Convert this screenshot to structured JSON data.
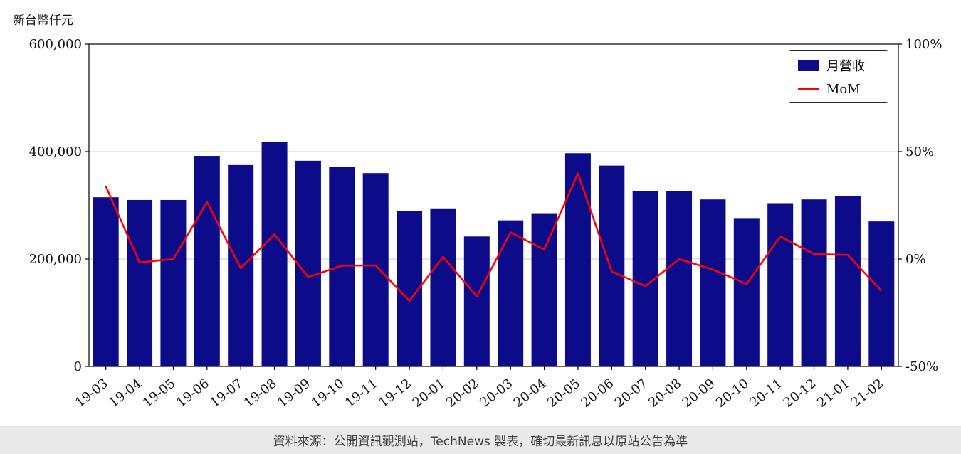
{
  "unit_label": "新台幣仟元",
  "watermark": "TechNews",
  "footer": "資料來源：公開資訊觀測站，TechNews 製表，確切最新訊息以原站公告為準",
  "legend": {
    "bar_label": "月營收",
    "line_label": "MoM"
  },
  "colors": {
    "bar": "#0c0c8a",
    "line": "#ff0000",
    "grid": "#cccccc",
    "axis": "#000000"
  },
  "chart_data": {
    "type": "bar",
    "title": "新台幣仟元",
    "xlabel": "",
    "ylabel": "新台幣仟元",
    "categories": [
      "19-03",
      "19-04",
      "19-05",
      "19-06",
      "19-07",
      "19-08",
      "19-09",
      "19-10",
      "19-11",
      "19-12",
      "20-01",
      "20-02",
      "20-03",
      "20-04",
      "20-05",
      "20-06",
      "20-07",
      "20-08",
      "20-09",
      "20-10",
      "20-11",
      "20-12",
      "21-01",
      "21-02"
    ],
    "series": [
      {
        "name": "月營收",
        "type": "bar",
        "axis": "left",
        "color": "#0c0c8a",
        "values": [
          315000,
          310000,
          310000,
          392000,
          375000,
          418000,
          383000,
          371000,
          360000,
          290000,
          293000,
          242000,
          272000,
          284000,
          397000,
          374000,
          327000,
          327000,
          311000,
          275000,
          304000,
          311000,
          317000,
          270000
        ]
      },
      {
        "name": "MoM",
        "type": "line",
        "axis": "right",
        "color": "#ff0000",
        "values": [
          33.8,
          -1.6,
          0.0,
          26.5,
          -4.3,
          11.5,
          -8.4,
          -3.1,
          -3.0,
          -19.4,
          1.0,
          -17.4,
          12.4,
          4.4,
          39.8,
          -5.8,
          -12.6,
          0.0,
          -4.9,
          -11.6,
          10.5,
          2.3,
          1.9,
          -14.8
        ]
      }
    ],
    "left_axis": {
      "min": 0,
      "max": 600000,
      "ticks": [
        0,
        200000,
        400000,
        600000
      ]
    },
    "right_axis": {
      "min": -50,
      "max": 100,
      "ticks": [
        -50,
        0,
        50,
        100
      ],
      "suffix": "%"
    },
    "grid": true,
    "legend_position": "top-right"
  }
}
